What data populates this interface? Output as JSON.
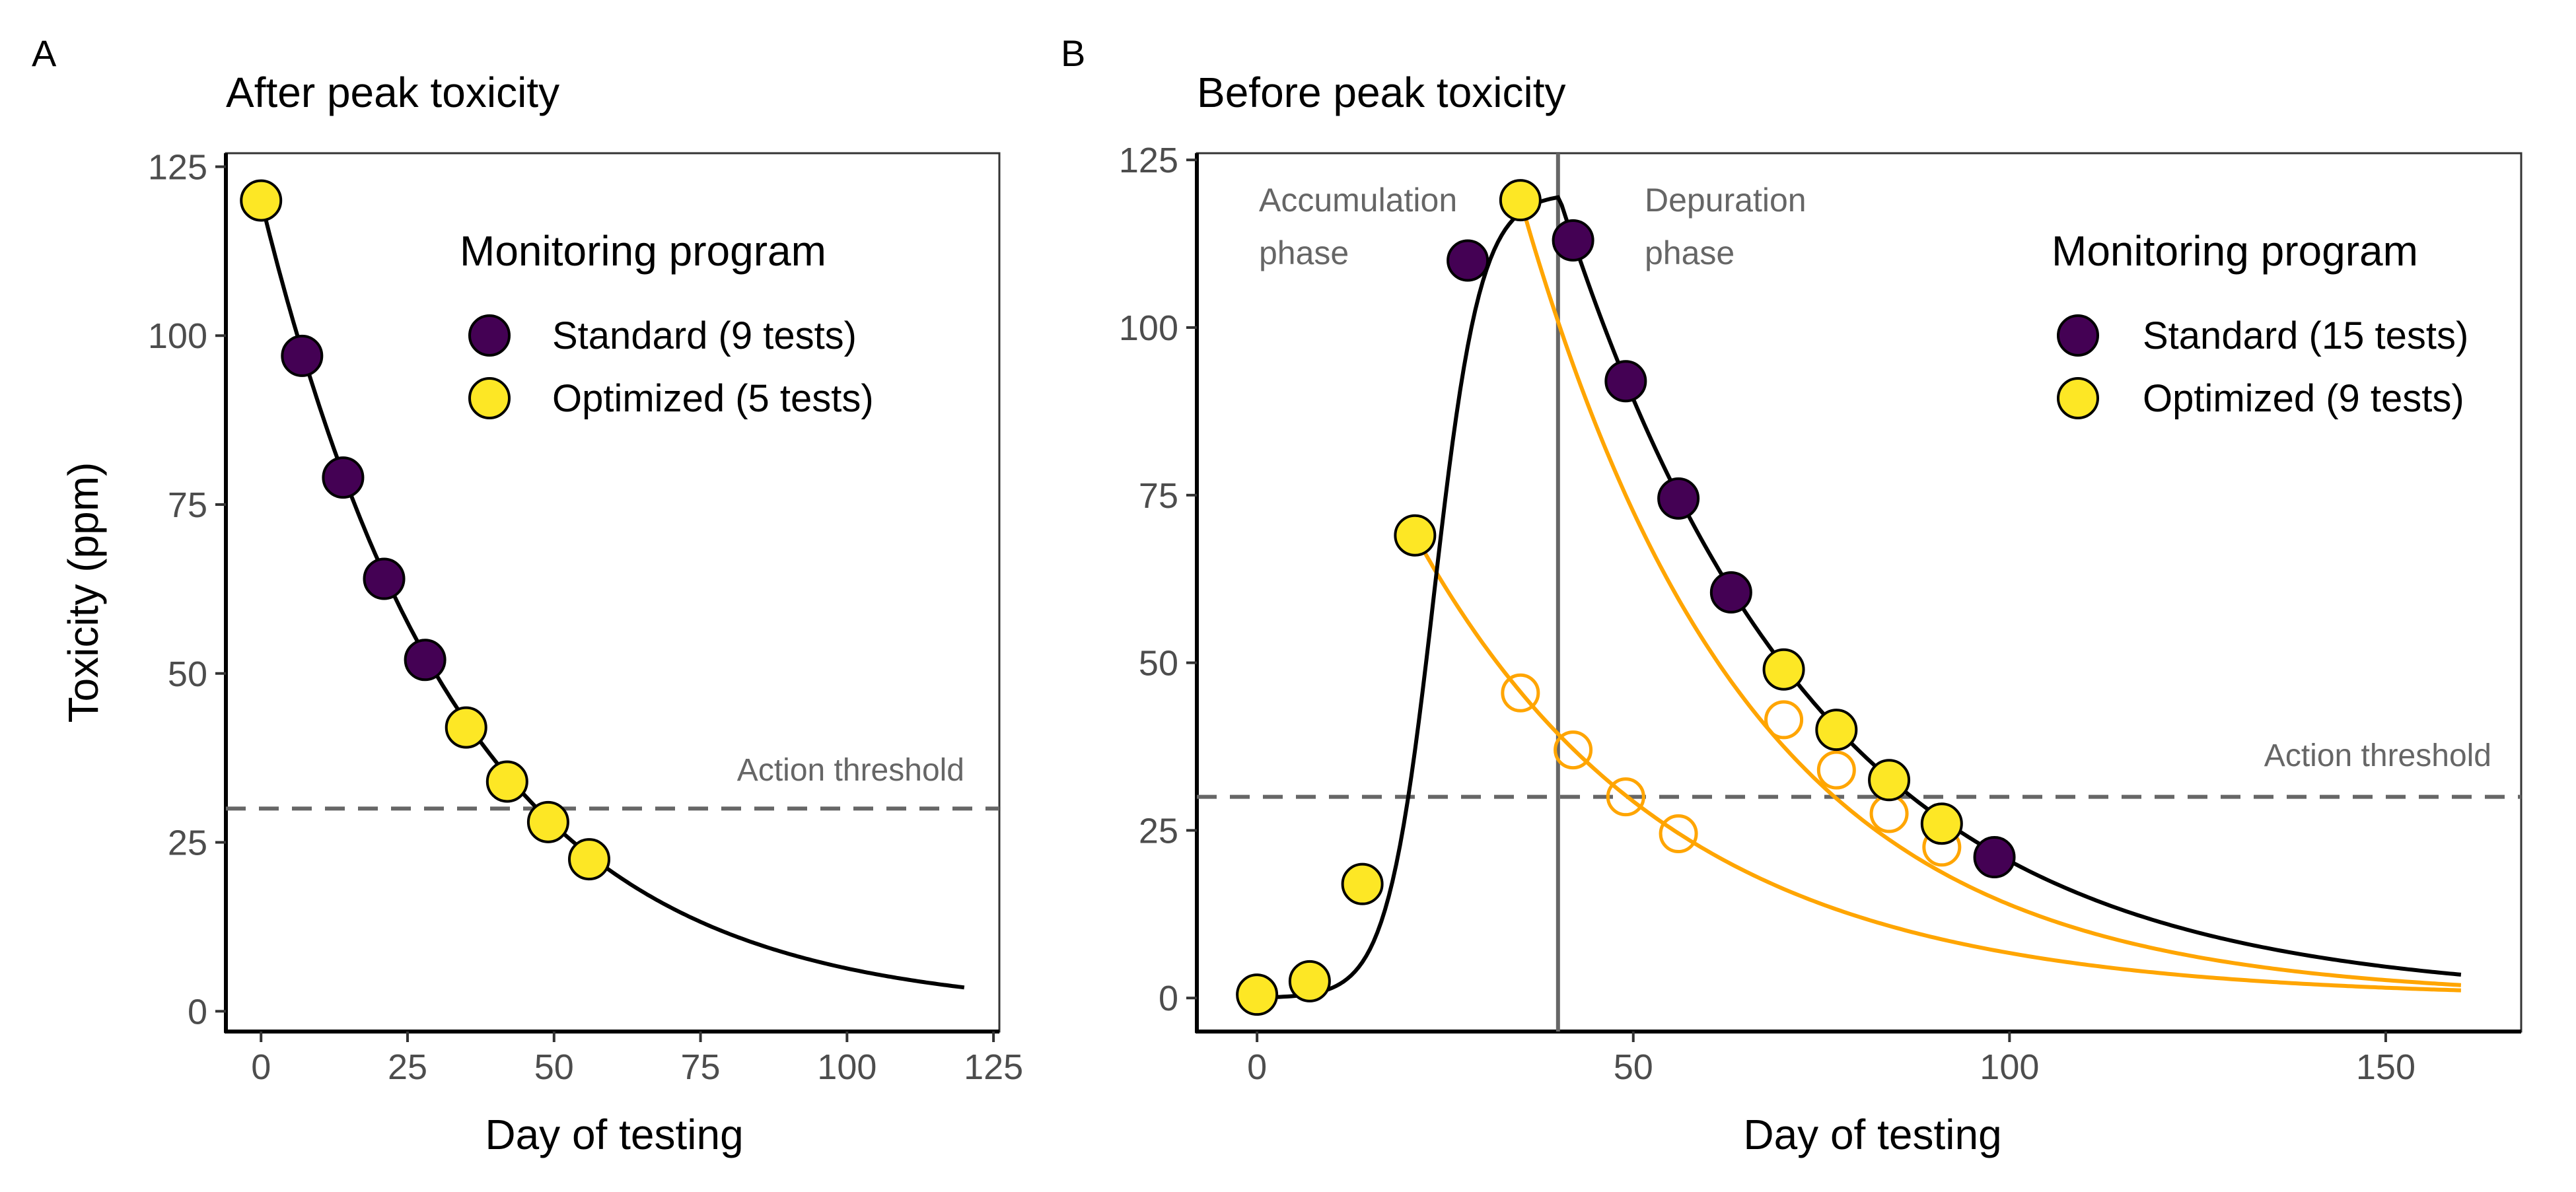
{
  "panels": [
    {
      "letter": "A",
      "title": "After peak toxicity",
      "xlabel": "Day of testing",
      "ylabel": "Toxicity (ppm)",
      "xticks": [
        0,
        25,
        50,
        75,
        100,
        125
      ],
      "yticks": [
        0,
        25,
        50,
        75,
        100,
        125
      ],
      "threshold_label": "Action threshold",
      "legend_title": "Monitoring program",
      "legend_items": [
        {
          "label": "Standard (9 tests)",
          "color": "#440154"
        },
        {
          "label": "Optimized (5 tests)",
          "color": "#FDE725"
        }
      ],
      "phase_labels": []
    },
    {
      "letter": "B",
      "title": "Before peak toxicity",
      "xlabel": "Day of testing",
      "ylabel": "",
      "xticks": [
        0,
        50,
        100,
        150
      ],
      "yticks": [
        0,
        25,
        50,
        75,
        100,
        125
      ],
      "threshold_label": "Action threshold",
      "legend_title": "Monitoring program",
      "legend_items": [
        {
          "label": "Standard (15 tests)",
          "color": "#440154"
        },
        {
          "label": "Optimized (9 tests)",
          "color": "#FDE725"
        }
      ],
      "phase_labels": [
        {
          "lines": [
            "Accumulation",
            "phase"
          ]
        },
        {
          "lines": [
            "Depuration",
            "phase"
          ]
        }
      ]
    }
  ],
  "colors": {
    "standard": "#440154",
    "optimized": "#FDE725",
    "forecast": "#FFA500",
    "threshold": "#666666",
    "curve": "#000000"
  },
  "chart_data": [
    {
      "type": "scatter",
      "title": "After peak toxicity",
      "xlabel": "Day of testing",
      "ylabel": "Toxicity (ppm)",
      "xlim": [
        -6,
        126
      ],
      "ylim": [
        -3,
        127
      ],
      "threshold": 30,
      "curve": {
        "kind": "exponential_decay",
        "y0": 120,
        "rate": 0.0294,
        "x_range": [
          0,
          120
        ]
      },
      "series": [
        {
          "name": "Standard (9 tests)",
          "marker": "filled",
          "points": [
            [
              7,
              97
            ],
            [
              14,
              79
            ],
            [
              21,
              64
            ],
            [
              28,
              52
            ]
          ]
        },
        {
          "name": "Optimized (5 tests)",
          "marker": "filled",
          "points": [
            [
              0,
              120
            ],
            [
              35,
              42
            ],
            [
              42,
              34
            ],
            [
              49,
              28
            ],
            [
              56,
              22.5
            ]
          ]
        }
      ]
    },
    {
      "type": "scatter",
      "title": "Before peak toxicity",
      "xlabel": "Day of testing",
      "ylabel": "",
      "xlim": [
        -8,
        168
      ],
      "ylim": [
        -5,
        126
      ],
      "threshold": 30,
      "peak_day": 40,
      "curve": {
        "kind": "accumulation_then_decay",
        "peak_day": 40,
        "peak": 120,
        "rate": 0.0295,
        "x_range": [
          0,
          160
        ]
      },
      "forecast_curves": [
        {
          "from": [
            21,
            69
          ],
          "rate": 0.0295,
          "x_range": [
            21,
            160
          ]
        },
        {
          "from": [
            35,
            119
          ],
          "rate": 0.033,
          "x_range": [
            35,
            160
          ]
        }
      ],
      "series": [
        {
          "name": "Standard (15 tests)",
          "marker": "filled",
          "points": [
            [
              28,
              110
            ],
            [
              42,
              113
            ],
            [
              49,
              92
            ],
            [
              56,
              74.5
            ],
            [
              63,
              60.5
            ],
            [
              98,
              21
            ]
          ]
        },
        {
          "name": "Optimized (9 tests)",
          "marker": "filled",
          "points": [
            [
              0,
              0.5
            ],
            [
              7,
              2.5
            ],
            [
              14,
              17
            ],
            [
              21,
              69
            ],
            [
              35,
              119
            ],
            [
              70,
              49
            ],
            [
              77,
              40
            ],
            [
              84,
              32.5
            ],
            [
              91,
              26
            ]
          ]
        },
        {
          "marker": "open",
          "points": [
            [
              35,
              45.5
            ],
            [
              42,
              37
            ],
            [
              49,
              30
            ],
            [
              56,
              24.5
            ],
            [
              70,
              41.5
            ],
            [
              77,
              34
            ],
            [
              84,
              27.5
            ],
            [
              91,
              22.5
            ]
          ]
        }
      ]
    }
  ]
}
